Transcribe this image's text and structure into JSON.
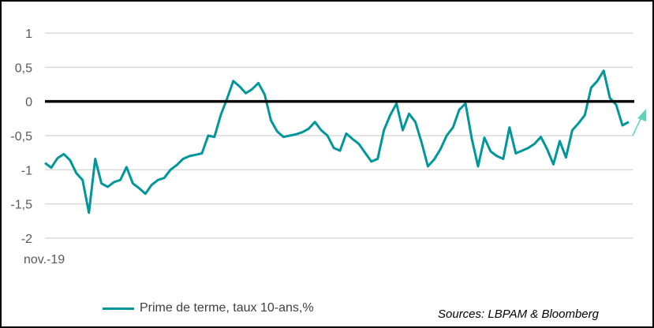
{
  "chart_data": {
    "type": "line",
    "title": "",
    "xlabel": "",
    "ylabel": "",
    "x_tick_labels": [
      "nov.-19"
    ],
    "y_ticks": [
      1,
      0.5,
      0,
      -0.5,
      -1,
      -1.5,
      -2
    ],
    "y_tick_labels": [
      "1",
      "0,5",
      "0",
      "-0,5",
      "-1",
      "-1,5",
      "-2"
    ],
    "ylim": [
      -2,
      1
    ],
    "grid": true,
    "reference_line": 0,
    "legend_position": "bottom-left",
    "series": [
      {
        "name": "Prime de terme, taux 10-ans,%",
        "color": "#00979b",
        "values": [
          -0.9,
          -0.97,
          -0.83,
          -0.77,
          -0.86,
          -1.05,
          -1.15,
          -1.63,
          -0.84,
          -1.2,
          -1.25,
          -1.18,
          -1.15,
          -0.96,
          -1.2,
          -1.27,
          -1.35,
          -1.22,
          -1.15,
          -1.12,
          -1.0,
          -0.93,
          -0.84,
          -0.8,
          -0.78,
          -0.76,
          -0.5,
          -0.52,
          -0.2,
          0.04,
          0.3,
          0.22,
          0.12,
          0.18,
          0.27,
          0.1,
          -0.28,
          -0.44,
          -0.52,
          -0.5,
          -0.48,
          -0.45,
          -0.4,
          -0.3,
          -0.42,
          -0.5,
          -0.68,
          -0.72,
          -0.47,
          -0.55,
          -0.62,
          -0.75,
          -0.88,
          -0.84,
          -0.42,
          -0.2,
          -0.03,
          -0.42,
          -0.18,
          -0.3,
          -0.6,
          -0.95,
          -0.85,
          -0.7,
          -0.5,
          -0.38,
          -0.12,
          -0.03,
          -0.55,
          -0.95,
          -0.53,
          -0.73,
          -0.8,
          -0.84,
          -0.38,
          -0.76,
          -0.72,
          -0.68,
          -0.62,
          -0.52,
          -0.7,
          -0.92,
          -0.58,
          -0.82,
          -0.42,
          -0.32,
          -0.2,
          0.2,
          0.3,
          0.45,
          0.05,
          -0.05,
          -0.35,
          -0.3
        ]
      }
    ],
    "annotations": {
      "arrow_color": "#5fd3b5",
      "arrow_direction": "up"
    },
    "source": "Sources: LBPAM & Bloomberg"
  }
}
